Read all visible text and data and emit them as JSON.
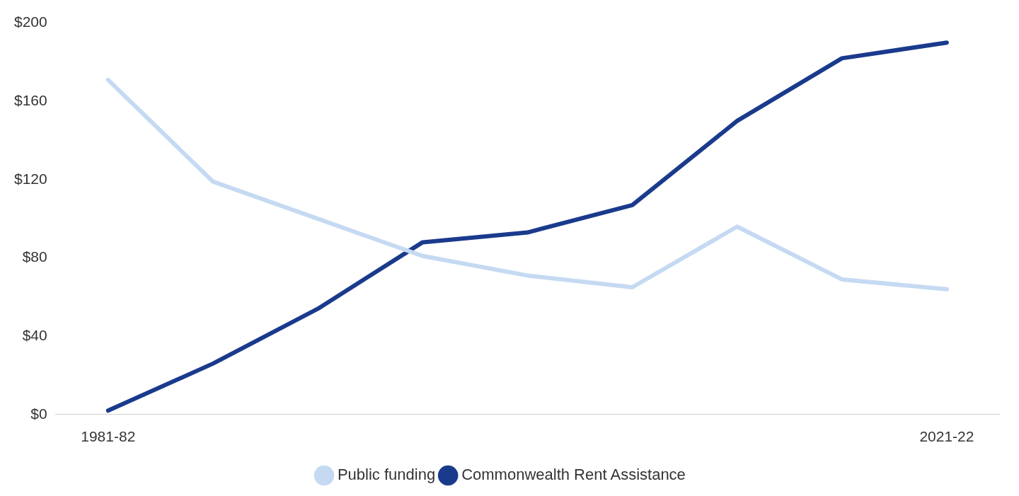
{
  "chart_data": {
    "type": "line",
    "categories": [
      "1981-82",
      null,
      null,
      null,
      null,
      null,
      null,
      null,
      "2021-22"
    ],
    "series": [
      {
        "name": "Public funding",
        "color": "#c5daf2",
        "values": [
          171,
          119,
          100,
          81,
          71,
          65,
          96,
          69,
          64
        ]
      },
      {
        "name": "Commonwealth Rent Assistance",
        "color": "#1a3a8c",
        "values": [
          2,
          26,
          54,
          88,
          93,
          107,
          150,
          182,
          190
        ]
      }
    ],
    "ylim": [
      0,
      200
    ],
    "yticks": [
      {
        "value": 0,
        "label": "$0"
      },
      {
        "value": 40,
        "label": "$40"
      },
      {
        "value": 80,
        "label": "$80"
      },
      {
        "value": 120,
        "label": "$120"
      },
      {
        "value": 160,
        "label": "$160"
      },
      {
        "value": 200,
        "label": "$200"
      }
    ],
    "grid": false,
    "legend": "bottom",
    "marker": "none",
    "line_style": "solid"
  }
}
